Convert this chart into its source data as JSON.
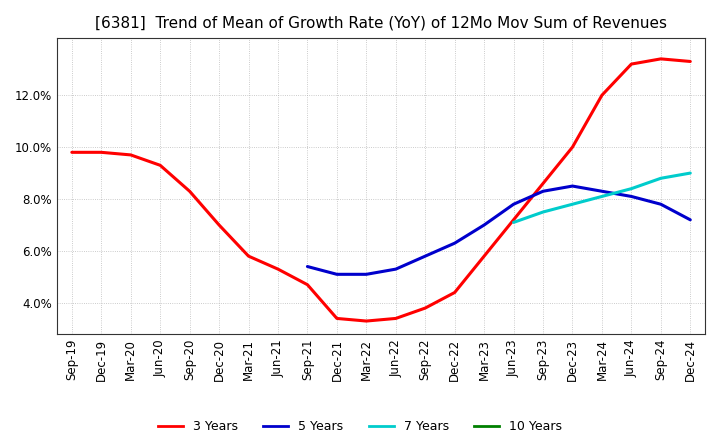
{
  "title": "[6381]  Trend of Mean of Growth Rate (YoY) of 12Mo Mov Sum of Revenues",
  "ylim": [
    0.028,
    0.142
  ],
  "yticks": [
    0.04,
    0.06,
    0.08,
    0.1,
    0.12
  ],
  "x_labels": [
    "Sep-19",
    "Dec-19",
    "Mar-20",
    "Jun-20",
    "Sep-20",
    "Dec-20",
    "Mar-21",
    "Jun-21",
    "Sep-21",
    "Dec-21",
    "Mar-22",
    "Jun-22",
    "Sep-22",
    "Dec-22",
    "Mar-23",
    "Jun-23",
    "Sep-23",
    "Dec-23",
    "Mar-24",
    "Jun-24",
    "Sep-24",
    "Dec-24"
  ],
  "series": {
    "3 Years": {
      "color": "#ff0000",
      "values": [
        0.098,
        0.098,
        0.097,
        0.093,
        0.083,
        0.07,
        0.058,
        0.053,
        0.047,
        0.034,
        0.033,
        0.034,
        0.038,
        0.044,
        0.058,
        0.072,
        0.086,
        0.1,
        0.12,
        0.132,
        0.134,
        0.133
      ]
    },
    "5 Years": {
      "color": "#0000cc",
      "values": [
        null,
        null,
        null,
        null,
        null,
        null,
        null,
        null,
        0.054,
        0.051,
        0.051,
        0.053,
        0.058,
        0.063,
        0.07,
        0.078,
        0.083,
        0.085,
        0.083,
        0.081,
        0.078,
        0.072
      ]
    },
    "7 Years": {
      "color": "#00cccc",
      "values": [
        null,
        null,
        null,
        null,
        null,
        null,
        null,
        null,
        null,
        null,
        null,
        null,
        null,
        null,
        null,
        0.071,
        0.075,
        0.078,
        0.081,
        0.084,
        0.088,
        0.09
      ]
    },
    "10 Years": {
      "color": "#008000",
      "values": [
        null,
        null,
        null,
        null,
        null,
        null,
        null,
        null,
        null,
        null,
        null,
        null,
        null,
        null,
        null,
        null,
        null,
        null,
        null,
        null,
        null,
        null
      ]
    }
  },
  "legend_labels": [
    "3 Years",
    "5 Years",
    "7 Years",
    "10 Years"
  ],
  "legend_colors": [
    "#ff0000",
    "#0000cc",
    "#00cccc",
    "#008000"
  ],
  "background_color": "#ffffff",
  "grid_color": "#aaaaaa",
  "title_fontsize": 11,
  "tick_fontsize": 8.5
}
